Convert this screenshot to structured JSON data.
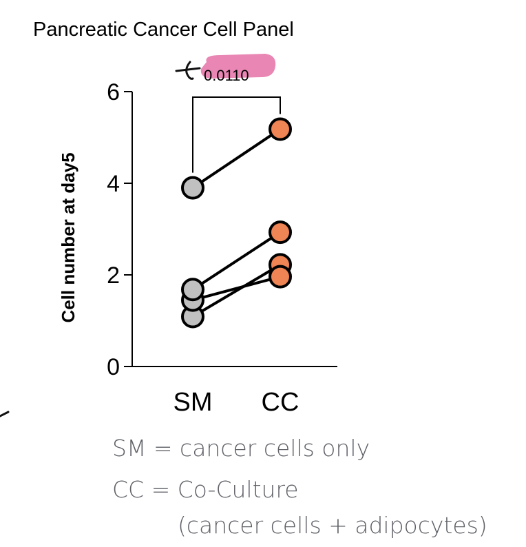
{
  "chart_data": {
    "type": "scatter",
    "subtype": "paired-dot",
    "title": "Pancreatic Cancer Cell Panel",
    "xlabel": "",
    "ylabel": "Cell number at day5",
    "categories": [
      "SM",
      "CC"
    ],
    "ylim": [
      0,
      6
    ],
    "yticks": [
      0,
      2,
      4,
      6
    ],
    "grid": false,
    "pairs": [
      {
        "SM": 3.9,
        "CC": 5.18
      },
      {
        "SM": 1.68,
        "CC": 2.93
      },
      {
        "SM": 1.45,
        "CC": 1.96
      },
      {
        "SM": 1.09,
        "CC": 2.22
      }
    ],
    "colors": {
      "SM": "#c0c0c0",
      "CC": "#ef8454"
    },
    "significance": {
      "label": "0.0110",
      "between": [
        "SM",
        "CC"
      ],
      "highlight_color": "#e986b4"
    },
    "legend": [
      "SM = cancer cells only",
      "CC = Co-Culture",
      "(cancer cells + adipocytes)"
    ]
  }
}
